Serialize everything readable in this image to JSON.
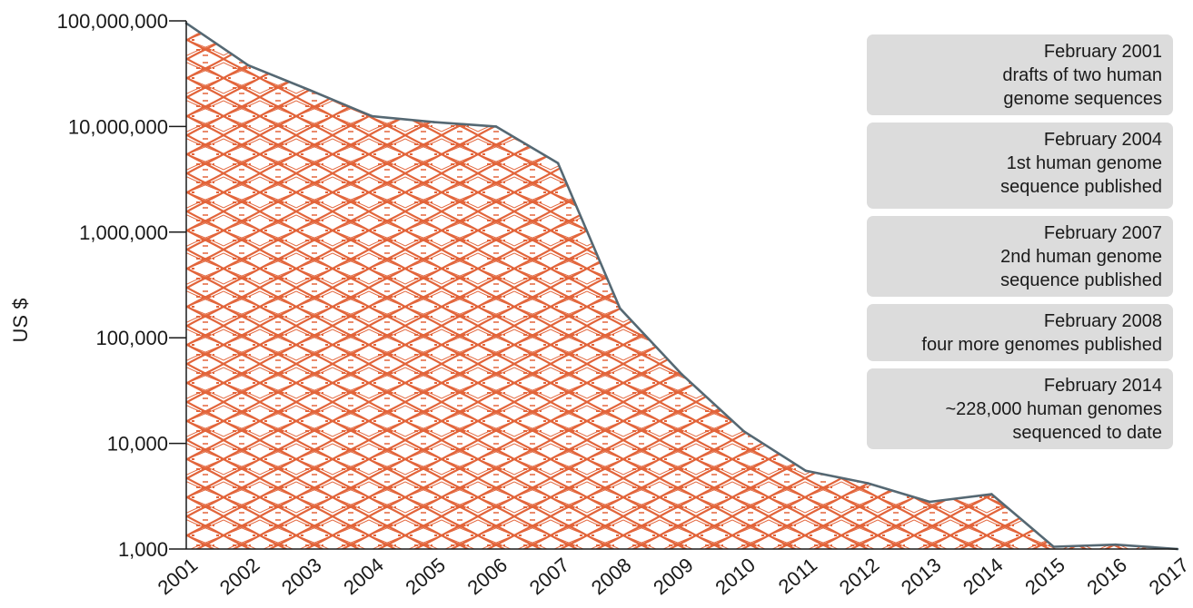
{
  "chart_data": {
    "type": "area",
    "ylabel": "US $",
    "yscale": "log",
    "ylim": [
      1000,
      100000000
    ],
    "y_ticks": [
      1000,
      10000,
      100000,
      1000000,
      10000000,
      100000000
    ],
    "y_tick_labels": [
      "1,000",
      "10,000",
      "100,000",
      "1,000,000",
      "10,000,000",
      "100,000,000"
    ],
    "x_ticks": [
      "2001",
      "2002",
      "2003",
      "2004",
      "2005",
      "2006",
      "2007",
      "2008",
      "2009",
      "2010",
      "2011",
      "2012",
      "2013",
      "2014",
      "2015",
      "2016",
      "2017"
    ],
    "points": [
      {
        "x": 2001.0,
        "y": 95000000
      },
      {
        "x": 2002.0,
        "y": 38000000
      },
      {
        "x": 2003.0,
        "y": 22000000
      },
      {
        "x": 2004.0,
        "y": 12500000
      },
      {
        "x": 2005.0,
        "y": 11000000
      },
      {
        "x": 2006.0,
        "y": 10000000
      },
      {
        "x": 2007.0,
        "y": 4500000
      },
      {
        "x": 2008.0,
        "y": 190000
      },
      {
        "x": 2009.0,
        "y": 45000
      },
      {
        "x": 2010.0,
        "y": 13000
      },
      {
        "x": 2011.0,
        "y": 5500
      },
      {
        "x": 2012.0,
        "y": 4200
      },
      {
        "x": 2013.0,
        "y": 2800
      },
      {
        "x": 2014.0,
        "y": 3300
      },
      {
        "x": 2015.0,
        "y": 1050
      },
      {
        "x": 2016.0,
        "y": 1100
      },
      {
        "x": 2017.0,
        "y": 1000
      }
    ],
    "fill_pattern": "dna-helix",
    "colors": {
      "fill": "#e2643a",
      "line": "#556873",
      "annotation_bg": "#dcdcdc"
    },
    "grid": false
  },
  "annotations": [
    {
      "lines": [
        "February 2001",
        "drafts of two human",
        "genome sequences"
      ]
    },
    {
      "lines": [
        "February 2004",
        "1st human genome",
        "sequence published"
      ]
    },
    {
      "lines": [
        "February 2007",
        "2nd human genome",
        "sequence published"
      ]
    },
    {
      "lines": [
        "February 2008",
        "four more genomes published"
      ]
    },
    {
      "lines": [
        "February 2014",
        "~228,000 human genomes",
        "sequenced to date"
      ]
    }
  ]
}
